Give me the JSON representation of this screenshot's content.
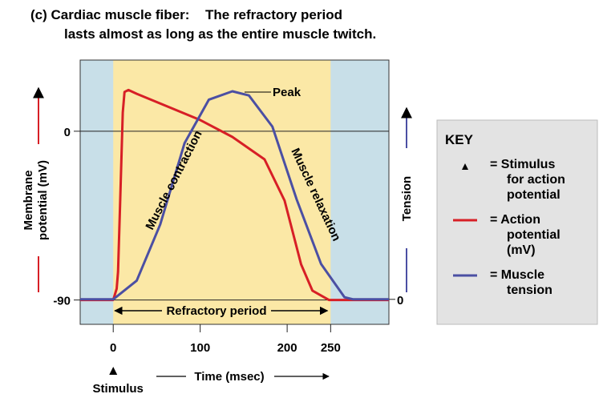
{
  "chart_data": {
    "type": "line",
    "title_label": "(c) Cardiac muscle fiber:",
    "title": [
      "The refractory period",
      "lasts almost as long as the entire muscle twitch."
    ],
    "ylabel": [
      "Membrane",
      "potential (mV)"
    ],
    "y2label": "Tension",
    "xlabel": "Time (msec)",
    "stimulus_label": "Stimulus",
    "annotations": {
      "peak": "Peak",
      "contraction": "Muscle contraction",
      "relaxation": "Muscle relaxation",
      "refractory": "Refractory period"
    },
    "refractory_period": [
      0,
      250
    ],
    "xlim": [
      -38,
      317
    ],
    "xticks": [
      0,
      100,
      200,
      250
    ],
    "ylim": [
      -103,
      38
    ],
    "yticks": [
      0,
      -90
    ],
    "y2lim": [
      -12,
      115
    ],
    "y2ticks": [
      0
    ],
    "series": [
      {
        "name": "Action potential (mV)",
        "color": "#d71f26",
        "x": [
          -38,
          0,
          4,
          5.5,
          8,
          11,
          13,
          17.5,
          27,
          100,
          137,
          174,
          197,
          216,
          229,
          248,
          317
        ],
        "values": [
          -90,
          -90,
          -84,
          -75,
          -37,
          10,
          21,
          22,
          20,
          6,
          -3,
          -15,
          -37,
          -71,
          -85,
          -90,
          -90
        ]
      },
      {
        "name": "Muscle tension",
        "color": "#4b4fa3",
        "axis": "y2",
        "x": [
          -38,
          0,
          27,
          54,
          82,
          110,
          137,
          156,
          183,
          211,
          239,
          266,
          276,
          317
        ],
        "values": [
          0,
          0,
          9,
          36,
          75,
          96,
          100,
          98,
          83,
          48,
          17,
          1,
          0,
          0
        ]
      }
    ],
    "key": {
      "title": "KEY",
      "items": [
        {
          "lines": [
            "= Stimulus",
            "for action",
            "potential"
          ]
        },
        {
          "lines": [
            "= Action",
            "potential",
            "(mV)"
          ]
        },
        {
          "lines": [
            "= Muscle",
            "tension"
          ]
        }
      ]
    }
  }
}
